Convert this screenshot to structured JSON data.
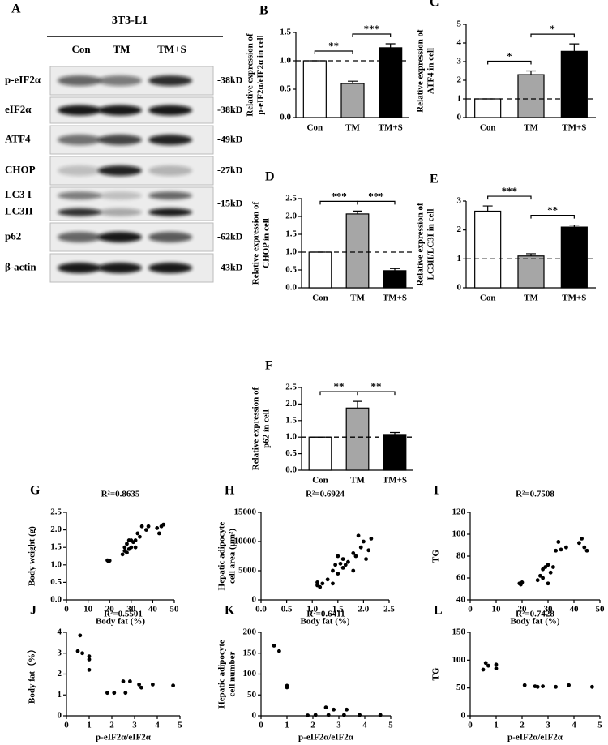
{
  "western_blot": {
    "panel": "A",
    "cell_line": "3T3-L1",
    "lanes": [
      "Con",
      "TM",
      "TM+S"
    ],
    "bands": [
      {
        "labels": [
          "p-eIF2α"
        ],
        "size": "-38kD"
      },
      {
        "labels": [
          "eIF2α"
        ],
        "size": "-38kD"
      },
      {
        "labels": [
          "ATF4"
        ],
        "size": "-49kD"
      },
      {
        "labels": [
          "CHOP"
        ],
        "size": "-27kD"
      },
      {
        "labels": [
          "LC3 I",
          "LC3II"
        ],
        "size": "-15kD"
      },
      {
        "labels": [
          "p62"
        ],
        "size": "-62kD"
      },
      {
        "labels": [
          "β-actin"
        ],
        "size": "-43kD"
      }
    ]
  },
  "chart_data": [
    {
      "type": "bar",
      "panel": "B",
      "ylabel": [
        "Relative expression of",
        "p-eIF2α/eIF2α in cell"
      ],
      "categories": [
        "Con",
        "TM",
        "TM+S"
      ],
      "values": [
        1.0,
        0.6,
        1.23
      ],
      "errors": [
        0,
        0.04,
        0.07
      ],
      "colors": [
        "#ffffff",
        "#a6a6a6",
        "#000000"
      ],
      "reference_line": 1,
      "ylim": [
        0,
        1.5
      ],
      "yticks": [
        {
          "value": 0,
          "label": "0.0"
        },
        {
          "value": 0.5,
          "label": "0.5"
        },
        {
          "value": 1,
          "label": "1.0"
        },
        {
          "value": 1.5,
          "label": "1.5"
        }
      ],
      "significance": [
        {
          "from": 0,
          "to": 1,
          "label": "**"
        },
        {
          "from": 1,
          "to": 2,
          "label": "***"
        }
      ]
    },
    {
      "type": "bar",
      "panel": "C",
      "ylabel": [
        "Relative expression of",
        "ATF4 in cell"
      ],
      "categories": [
        "Con",
        "TM",
        "TM+S"
      ],
      "values": [
        1.0,
        2.3,
        3.55
      ],
      "errors": [
        0,
        0.2,
        0.4
      ],
      "colors": [
        "#ffffff",
        "#a6a6a6",
        "#000000"
      ],
      "reference_line": 1,
      "ylim": [
        0,
        5
      ],
      "yticks": [
        0,
        1,
        2,
        3,
        4,
        5
      ],
      "significance": [
        {
          "from": 0,
          "to": 1,
          "label": "*"
        },
        {
          "from": 1,
          "to": 2,
          "label": "*"
        }
      ]
    },
    {
      "type": "bar",
      "panel": "D",
      "ylabel": [
        "Relative expression of",
        "CHOP in cell"
      ],
      "categories": [
        "Con",
        "TM",
        "TM+S"
      ],
      "values": [
        1.0,
        2.07,
        0.48
      ],
      "errors": [
        0,
        0.08,
        0.06
      ],
      "colors": [
        "#ffffff",
        "#a6a6a6",
        "#000000"
      ],
      "reference_line": 1,
      "ylim": [
        0,
        2.5
      ],
      "yticks": [
        {
          "value": 0,
          "label": "0.0"
        },
        {
          "value": 0.5,
          "label": "0.5"
        },
        {
          "value": 1,
          "label": "1.0"
        },
        {
          "value": 1.5,
          "label": "1.5"
        },
        {
          "value": 2,
          "label": "2.0"
        },
        {
          "value": 2.5,
          "label": "2.5"
        }
      ],
      "significance": [
        {
          "from": 0,
          "to": 1,
          "label": "***"
        },
        {
          "from": 1,
          "to": 2,
          "label": "***"
        }
      ]
    },
    {
      "type": "bar",
      "panel": "E",
      "ylabel": [
        "Relative expression of",
        "LC3II/LC3I in cell"
      ],
      "categories": [
        "Con",
        "TM",
        "TM+S"
      ],
      "values": [
        2.65,
        1.1,
        2.1
      ],
      "errors": [
        0.18,
        0.08,
        0.07
      ],
      "colors": [
        "#ffffff",
        "#a6a6a6",
        "#000000"
      ],
      "reference_line": 1,
      "ylim": [
        0,
        3
      ],
      "yticks": [
        0,
        1,
        2,
        3
      ],
      "significance": [
        {
          "from": 0,
          "to": 1,
          "label": "***"
        },
        {
          "from": 1,
          "to": 2,
          "label": "**"
        }
      ]
    },
    {
      "type": "bar",
      "panel": "F",
      "ylabel": [
        "Relative expression of",
        "p62 in cell"
      ],
      "categories": [
        "Con",
        "TM",
        "TM+S"
      ],
      "values": [
        1.0,
        1.88,
        1.08
      ],
      "errors": [
        0,
        0.2,
        0.06
      ],
      "colors": [
        "#ffffff",
        "#a6a6a6",
        "#000000"
      ],
      "reference_line": 1,
      "ylim": [
        0,
        2.5
      ],
      "yticks": [
        {
          "value": 0,
          "label": "0.0"
        },
        {
          "value": 0.5,
          "label": "0.5"
        },
        {
          "value": 1,
          "label": "1.0"
        },
        {
          "value": 1.5,
          "label": "1.5"
        },
        {
          "value": 2,
          "label": "2.0"
        },
        {
          "value": 2.5,
          "label": "2.5"
        }
      ],
      "significance": [
        {
          "from": 0,
          "to": 1,
          "label": "**"
        },
        {
          "from": 1,
          "to": 2,
          "label": "**"
        }
      ]
    },
    {
      "type": "scatter",
      "panel": "G",
      "annotation": "R²=0.8635",
      "xlabel": "Body fat (%)",
      "ylabel": [
        "Body weight (g)"
      ],
      "x": [
        19,
        19.5,
        20,
        26,
        27,
        27,
        28,
        28,
        29,
        29,
        30,
        30,
        31,
        32,
        32,
        33,
        34,
        35,
        37,
        38,
        42,
        43,
        44,
        45
      ],
      "y": [
        1.13,
        1.1,
        1.12,
        1.3,
        1.4,
        1.5,
        1.35,
        1.6,
        1.45,
        1.7,
        1.5,
        1.7,
        1.65,
        1.5,
        1.7,
        1.9,
        1.8,
        2.1,
        2.0,
        2.1,
        2.05,
        1.9,
        2.1,
        2.15
      ],
      "color": "#000000",
      "xlim": [
        0,
        50
      ],
      "xticks": [
        0,
        10,
        20,
        30,
        40,
        50
      ],
      "ylim": [
        0,
        2.5
      ],
      "yticks": [
        {
          "value": 0,
          "label": "0.0"
        },
        {
          "value": 0.5,
          "label": "0.5"
        },
        {
          "value": 1,
          "label": "1.0"
        },
        {
          "value": 1.5,
          "label": "1.5"
        },
        {
          "value": 2,
          "label": "2.0"
        },
        {
          "value": 2.5,
          "label": "2.5"
        }
      ]
    },
    {
      "type": "scatter",
      "panel": "H",
      "annotation": "R²=0.6924",
      "xlabel": "Body fat (%)",
      "ylabel": [
        "Hepatic adipocyte",
        "cell area (μm²)"
      ],
      "x": [
        1.1,
        1.1,
        1.15,
        1.2,
        1.3,
        1.4,
        1.4,
        1.45,
        1.5,
        1.5,
        1.55,
        1.6,
        1.6,
        1.65,
        1.7,
        1.8,
        1.8,
        1.85,
        1.9,
        1.95,
        2.0,
        2.05,
        2.1,
        2.15
      ],
      "y": [
        2500,
        3000,
        2200,
        2800,
        3500,
        2800,
        5000,
        6000,
        4500,
        7500,
        6200,
        5500,
        7000,
        6000,
        6500,
        5000,
        8000,
        7500,
        11000,
        9000,
        10000,
        7000,
        8500,
        10500
      ],
      "color": "#000000",
      "xlim": [
        0,
        2.5
      ],
      "xticks": [
        {
          "value": 0,
          "label": "0.0"
        },
        {
          "value": 0.5,
          "label": "0.5"
        },
        {
          "value": 1,
          "label": "1.0"
        },
        {
          "value": 1.5,
          "label": "1.5"
        },
        {
          "value": 2,
          "label": "2.0"
        },
        {
          "value": 2.5,
          "label": "2.5"
        }
      ],
      "ylim": [
        0,
        15000
      ],
      "yticks": [
        0,
        5000,
        10000,
        15000
      ]
    },
    {
      "type": "scatter",
      "panel": "I",
      "annotation": "R²=0.7508",
      "xlabel": "Body fat (%)",
      "ylabel": [
        "TG"
      ],
      "x": [
        19,
        19.5,
        20,
        26,
        27,
        28,
        28,
        29,
        30,
        30,
        31,
        32,
        33,
        34,
        35,
        37,
        42,
        43,
        44,
        45
      ],
      "y": [
        55,
        54,
        56,
        58,
        62,
        60,
        68,
        70,
        55,
        72,
        65,
        70,
        85,
        93,
        86,
        88,
        92,
        96,
        88,
        85
      ],
      "color": "#000000",
      "xlim": [
        0,
        50
      ],
      "xticks": [
        0,
        10,
        20,
        30,
        40,
        50
      ],
      "ylim": [
        40,
        120
      ],
      "yticks": [
        40,
        60,
        80,
        100,
        120
      ]
    },
    {
      "type": "scatter",
      "panel": "J",
      "annotation": "R²=0.5501",
      "xlabel": "p-eIF2α/eIF2α",
      "ylabel": [
        "Body fat（%）"
      ],
      "x": [
        0.5,
        0.6,
        0.7,
        1.0,
        1.0,
        1.0,
        1.8,
        2.1,
        2.5,
        2.6,
        2.8,
        3.2,
        3.3,
        3.8,
        4.7
      ],
      "y": [
        3.1,
        3.85,
        3.0,
        2.85,
        2.7,
        2.2,
        1.1,
        1.1,
        1.65,
        1.1,
        1.65,
        1.5,
        1.35,
        1.5,
        1.45
      ],
      "color": "#000000",
      "xlim": [
        0,
        5
      ],
      "xticks": [
        0,
        1,
        2,
        3,
        4,
        5
      ],
      "ylim": [
        0,
        4
      ],
      "yticks": [
        0,
        1,
        2,
        3,
        4
      ]
    },
    {
      "type": "scatter",
      "panel": "K",
      "annotation": "R²=0.6411",
      "xlabel": "p-eIF2α/eIF2α",
      "ylabel": [
        "Hepatic adipocyte",
        "cell number"
      ],
      "x": [
        0.5,
        0.7,
        1.0,
        1.0,
        1.8,
        2.1,
        2.5,
        2.6,
        2.8,
        3.2,
        3.3,
        3.8,
        4.6
      ],
      "y": [
        168,
        155,
        72,
        68,
        1,
        2,
        20,
        2,
        15,
        2,
        15,
        2,
        2
      ],
      "color": "#000000",
      "xlim": [
        0,
        5
      ],
      "xticks": [
        0,
        1,
        2,
        3,
        4,
        5
      ],
      "ylim": [
        0,
        200
      ],
      "yticks": [
        0,
        50,
        100,
        150,
        200
      ]
    },
    {
      "type": "scatter",
      "panel": "L",
      "annotation": "R²=0.7428",
      "xlabel": "p-eIF2α/eIF2α",
      "ylabel": [
        "TG"
      ],
      "x": [
        0.5,
        0.6,
        0.7,
        1.0,
        1.0,
        2.1,
        2.5,
        2.6,
        2.8,
        3.3,
        3.8,
        4.7
      ],
      "y": [
        83,
        95,
        90,
        92,
        85,
        55,
        53,
        52,
        53,
        52,
        55,
        52
      ],
      "color": "#000000",
      "xlim": [
        0,
        5
      ],
      "xticks": [
        0,
        1,
        2,
        3,
        4,
        5
      ],
      "ylim": [
        0,
        150
      ],
      "yticks": [
        0,
        50,
        100,
        150
      ]
    }
  ]
}
